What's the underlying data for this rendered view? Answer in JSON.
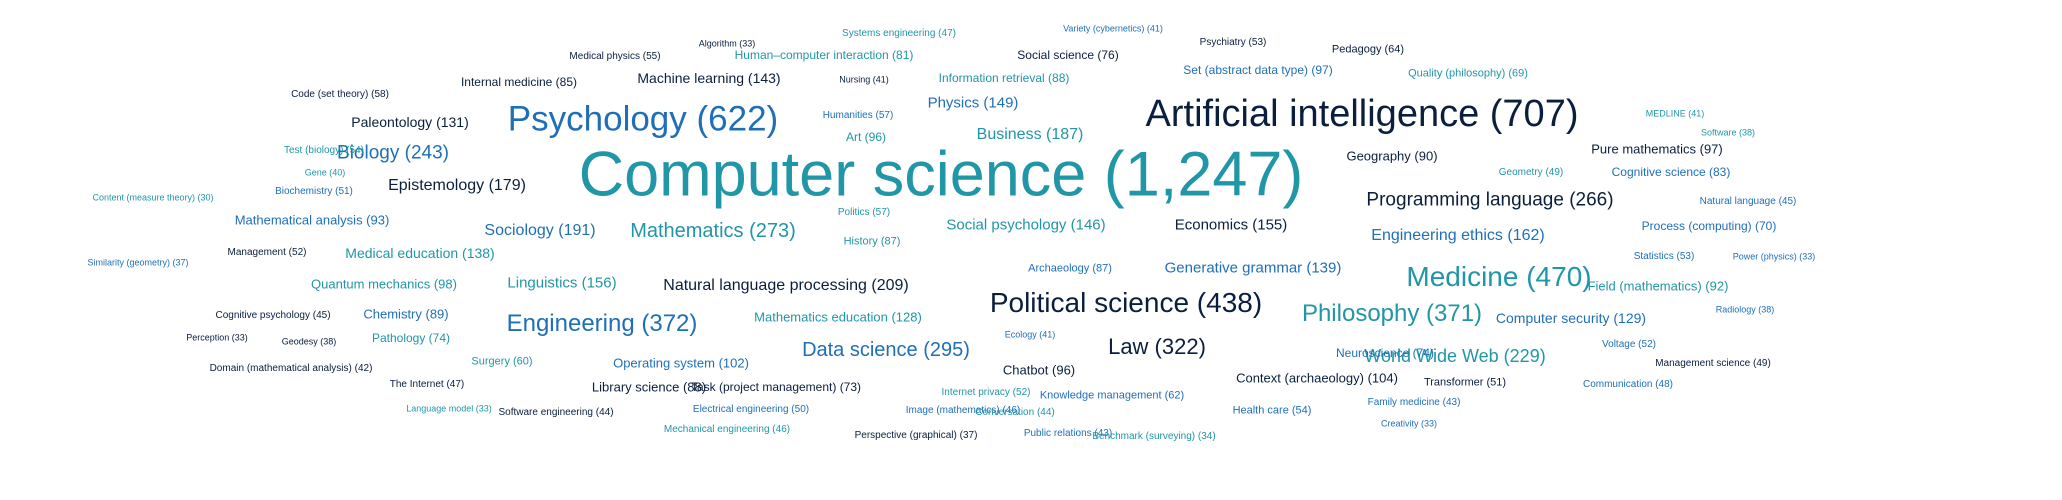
{
  "chart_data": {
    "type": "wordcloud",
    "colors": {
      "navy": "#0a1f3d",
      "blue": "#1f6fb8",
      "teal": "#2196a6"
    },
    "words": [
      {
        "term": "Computer science",
        "count": "1,247",
        "color": "teal"
      },
      {
        "term": "Artificial intelligence",
        "count": "707",
        "color": "navy"
      },
      {
        "term": "Psychology",
        "count": "622",
        "color": "blue"
      },
      {
        "term": "Medicine",
        "count": "470",
        "color": "teal"
      },
      {
        "term": "Political science",
        "count": "438",
        "color": "navy"
      },
      {
        "term": "Engineering",
        "count": "372",
        "color": "blue"
      },
      {
        "term": "Philosophy",
        "count": "371",
        "color": "teal"
      },
      {
        "term": "Law",
        "count": "322",
        "color": "navy"
      },
      {
        "term": "Data science",
        "count": "295",
        "color": "blue"
      },
      {
        "term": "Mathematics",
        "count": "273",
        "color": "teal"
      },
      {
        "term": "Programming language",
        "count": "266",
        "color": "navy"
      },
      {
        "term": "Biology",
        "count": "243",
        "color": "blue"
      },
      {
        "term": "World Wide Web",
        "count": "229",
        "color": "teal"
      },
      {
        "term": "Natural language processing",
        "count": "209",
        "color": "navy"
      },
      {
        "term": "Sociology",
        "count": "191",
        "color": "blue"
      },
      {
        "term": "Business",
        "count": "187",
        "color": "teal"
      },
      {
        "term": "Epistemology",
        "count": "179",
        "color": "navy"
      },
      {
        "term": "Engineering ethics",
        "count": "162",
        "color": "blue"
      },
      {
        "term": "Linguistics",
        "count": "156",
        "color": "teal"
      },
      {
        "term": "Economics",
        "count": "155",
        "color": "navy"
      },
      {
        "term": "Physics",
        "count": "149",
        "color": "blue"
      },
      {
        "term": "Social psychology",
        "count": "146",
        "color": "teal"
      },
      {
        "term": "Machine learning",
        "count": "143",
        "color": "navy"
      },
      {
        "term": "Generative grammar",
        "count": "139",
        "color": "blue"
      },
      {
        "term": "Medical education",
        "count": "138",
        "color": "teal"
      },
      {
        "term": "Paleontology",
        "count": "131",
        "color": "navy"
      },
      {
        "term": "Computer security",
        "count": "129",
        "color": "blue"
      },
      {
        "term": "Mathematics education",
        "count": "128",
        "color": "teal"
      },
      {
        "term": "Context (archaeology)",
        "count": "104",
        "color": "navy"
      },
      {
        "term": "Operating system",
        "count": "102",
        "color": "blue"
      },
      {
        "term": "Quantum mechanics",
        "count": "98",
        "color": "teal"
      },
      {
        "term": "Pure mathematics",
        "count": "97",
        "color": "navy"
      },
      {
        "term": "Set (abstract data type)",
        "count": "97",
        "color": "blue"
      },
      {
        "term": "Art",
        "count": "96",
        "color": "teal"
      },
      {
        "term": "Chatbot",
        "count": "96",
        "color": "navy"
      },
      {
        "term": "Mathematical analysis",
        "count": "93",
        "color": "blue"
      },
      {
        "term": "Field (mathematics)",
        "count": "92",
        "color": "teal"
      },
      {
        "term": "Geography",
        "count": "90",
        "color": "navy"
      },
      {
        "term": "Chemistry",
        "count": "89",
        "color": "blue"
      },
      {
        "term": "Information retrieval",
        "count": "88",
        "color": "teal"
      },
      {
        "term": "Library science",
        "count": "88",
        "color": "navy"
      },
      {
        "term": "Archaeology",
        "count": "87",
        "color": "blue"
      },
      {
        "term": "History",
        "count": "87",
        "color": "teal"
      },
      {
        "term": "Internal medicine",
        "count": "85",
        "color": "navy"
      },
      {
        "term": "Cognitive science",
        "count": "83",
        "color": "blue"
      },
      {
        "term": "Human–computer interaction",
        "count": "81",
        "color": "teal"
      },
      {
        "term": "Social science",
        "count": "76",
        "color": "navy"
      },
      {
        "term": "Neuroscience",
        "count": "74",
        "color": "blue"
      },
      {
        "term": "Pathology",
        "count": "74",
        "color": "teal"
      },
      {
        "term": "Task (project management)",
        "count": "73",
        "color": "navy"
      },
      {
        "term": "Process (computing)",
        "count": "70",
        "color": "blue"
      },
      {
        "term": "Quality (philosophy)",
        "count": "69",
        "color": "teal"
      },
      {
        "term": "Pedagogy",
        "count": "64",
        "color": "navy"
      },
      {
        "term": "Knowledge management",
        "count": "62",
        "color": "blue"
      },
      {
        "term": "Surgery",
        "count": "60",
        "color": "teal"
      },
      {
        "term": "Code (set theory)",
        "count": "58",
        "color": "navy"
      },
      {
        "term": "Humanities",
        "count": "57",
        "color": "blue"
      },
      {
        "term": "Politics",
        "count": "57",
        "color": "teal"
      },
      {
        "term": "Medical physics",
        "count": "55",
        "color": "navy"
      },
      {
        "term": "Health care",
        "count": "54",
        "color": "blue"
      },
      {
        "term": "Test (biology)",
        "count": "54",
        "color": "teal"
      },
      {
        "term": "Psychiatry",
        "count": "53",
        "color": "navy"
      },
      {
        "term": "Statistics",
        "count": "53",
        "color": "blue"
      },
      {
        "term": "Voltage",
        "count": "52",
        "color": "blue"
      },
      {
        "term": "Internet privacy",
        "count": "52",
        "color": "teal"
      },
      {
        "term": "Management",
        "count": "52",
        "color": "navy"
      },
      {
        "term": "Biochemistry",
        "count": "51",
        "color": "blue"
      },
      {
        "term": "Transformer",
        "count": "51",
        "color": "navy"
      },
      {
        "term": "Electrical engineering",
        "count": "50",
        "color": "blue"
      },
      {
        "term": "Management science",
        "count": "49",
        "color": "navy"
      },
      {
        "term": "Geometry",
        "count": "49",
        "color": "teal"
      },
      {
        "term": "Communication",
        "count": "48",
        "color": "blue"
      },
      {
        "term": "Systems engineering",
        "count": "47",
        "color": "teal"
      },
      {
        "term": "The Internet",
        "count": "47",
        "color": "navy"
      },
      {
        "term": "Image (mathematics)",
        "count": "46",
        "color": "blue"
      },
      {
        "term": "Mechanical engineering",
        "count": "46",
        "color": "teal"
      },
      {
        "term": "Cognitive psychology",
        "count": "45",
        "color": "navy"
      },
      {
        "term": "Natural language",
        "count": "45",
        "color": "blue"
      },
      {
        "term": "Conversation",
        "count": "44",
        "color": "teal"
      },
      {
        "term": "Software engineering",
        "count": "44",
        "color": "navy"
      },
      {
        "term": "Public relations",
        "count": "43",
        "color": "blue"
      },
      {
        "term": "Family medicine",
        "count": "43",
        "color": "blue"
      },
      {
        "term": "Domain (mathematical analysis)",
        "count": "42",
        "color": "navy"
      },
      {
        "term": "Nursing",
        "count": "41",
        "color": "navy"
      },
      {
        "term": "Ecology",
        "count": "41",
        "color": "blue"
      },
      {
        "term": "MEDLINE",
        "count": "41",
        "color": "teal"
      },
      {
        "term": "Variety (cybernetics)",
        "count": "41",
        "color": "blue"
      },
      {
        "term": "Gene",
        "count": "40",
        "color": "teal"
      },
      {
        "term": "Software",
        "count": "38",
        "color": "teal"
      },
      {
        "term": "Radiology",
        "count": "38",
        "color": "blue"
      },
      {
        "term": "Geodesy",
        "count": "38",
        "color": "navy"
      },
      {
        "term": "Similarity (geometry)",
        "count": "37",
        "color": "blue"
      },
      {
        "term": "Perspective (graphical)",
        "count": "37",
        "color": "navy"
      },
      {
        "term": "Benchmark (surveying)",
        "count": "34",
        "color": "teal"
      },
      {
        "term": "Algorithm",
        "count": "33",
        "color": "navy"
      },
      {
        "term": "Perception",
        "count": "33",
        "color": "navy"
      },
      {
        "term": "Power (physics)",
        "count": "33",
        "color": "blue"
      },
      {
        "term": "Language model",
        "count": "33",
        "color": "teal"
      },
      {
        "term": "Creativity",
        "count": "33",
        "color": "blue"
      },
      {
        "term": "Content (measure theory)",
        "count": "30",
        "color": "teal"
      }
    ]
  }
}
